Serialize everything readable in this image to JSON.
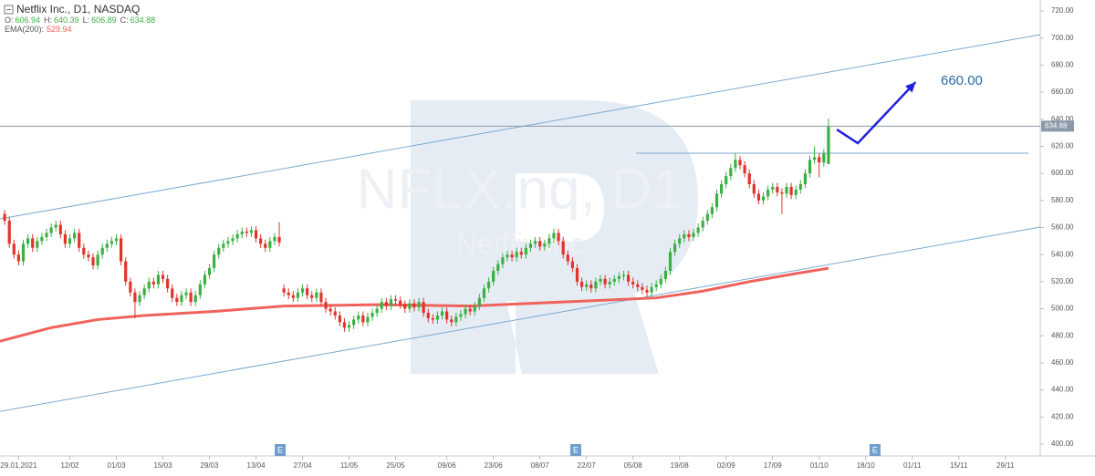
{
  "chart_data": {
    "type": "candlestick",
    "title": "Netflix Inc.,  D1,  NASDAQ",
    "ohlc_labels": [
      "O:",
      "H:",
      "L:",
      "C:"
    ],
    "up_color": "#3cb043",
    "down_color": "#e0342c",
    "ylim": [
      400,
      720
    ],
    "yticks": [
      {
        "value": 400,
        "label": "400.00"
      },
      {
        "value": 420,
        "label": "420.00"
      },
      {
        "value": 440,
        "label": "440.00"
      },
      {
        "value": 460,
        "label": "460.00"
      },
      {
        "value": 480,
        "label": "480.00"
      },
      {
        "value": 500,
        "label": "500.00"
      },
      {
        "value": 520,
        "label": "520.00"
      },
      {
        "value": 540,
        "label": "540.00"
      },
      {
        "value": 560,
        "label": "560.00"
      },
      {
        "value": 580,
        "label": "580.00"
      },
      {
        "value": 600,
        "label": "600.00"
      },
      {
        "value": 620,
        "label": "620.00"
      },
      {
        "value": 640,
        "label": "640.00"
      },
      {
        "value": 660,
        "label": "660.00"
      },
      {
        "value": 680,
        "label": "680.00"
      },
      {
        "value": 700,
        "label": "700.00"
      },
      {
        "value": 720,
        "label": "720.00"
      }
    ],
    "xlim": [
      -1,
      222.5
    ],
    "xticks": [
      {
        "value": 3,
        "label": "29.01.2021"
      },
      {
        "value": 14,
        "label": "12/02"
      },
      {
        "value": 24,
        "label": "01/03"
      },
      {
        "value": 34,
        "label": "15/03"
      },
      {
        "value": 44,
        "label": "29/03"
      },
      {
        "value": 54,
        "label": "13/04"
      },
      {
        "value": 64,
        "label": "27/04"
      },
      {
        "value": 74,
        "label": "11/05"
      },
      {
        "value": 84,
        "label": "25/05"
      },
      {
        "value": 95,
        "label": "09/06"
      },
      {
        "value": 105,
        "label": "23/06"
      },
      {
        "value": 115,
        "label": "08/07"
      },
      {
        "value": 125,
        "label": "22/07"
      },
      {
        "value": 135,
        "label": "05/08"
      },
      {
        "value": 145,
        "label": "19/08"
      },
      {
        "value": 155,
        "label": "02/09"
      },
      {
        "value": 165,
        "label": "17/09"
      },
      {
        "value": 175,
        "label": "01/10"
      },
      {
        "value": 185,
        "label": "18/10"
      },
      {
        "value": 195,
        "label": "01/11"
      },
      {
        "value": 205,
        "label": "15/11"
      },
      {
        "value": 215,
        "label": "29/11"
      }
    ],
    "open": [
      570,
      565,
      548,
      540,
      535,
      548,
      552,
      545,
      550,
      553,
      556,
      560,
      562,
      555,
      548,
      552,
      556,
      545,
      540,
      538,
      532,
      540,
      545,
      548,
      550,
      552,
      535,
      520,
      512,
      505,
      510,
      515,
      520,
      518,
      525,
      522,
      515,
      508,
      505,
      510,
      512,
      505,
      510,
      518,
      525,
      530,
      540,
      545,
      548,
      550,
      552,
      555,
      557,
      556,
      558,
      552,
      548,
      545,
      550,
      553,
      515,
      512,
      510,
      508,
      512,
      515,
      510,
      508,
      512,
      505,
      500,
      498,
      495,
      490,
      486,
      488,
      492,
      495,
      490,
      494,
      497,
      500,
      505,
      502,
      507,
      506,
      503,
      500,
      504,
      501,
      505,
      497,
      493,
      492,
      495,
      498,
      492,
      490,
      494,
      496,
      500,
      498,
      502,
      508,
      515,
      520,
      528,
      533,
      538,
      540,
      538,
      542,
      540,
      545,
      548,
      550,
      546,
      548,
      552,
      556,
      550,
      540,
      535,
      530,
      520,
      516,
      518,
      515,
      520,
      522,
      518,
      520,
      522,
      524,
      525,
      520,
      518,
      516,
      514,
      512,
      516,
      518,
      522,
      528,
      542,
      548,
      552,
      555,
      553,
      556,
      560,
      565,
      570,
      575,
      585,
      592,
      598,
      604,
      610,
      606,
      600,
      592,
      585,
      580,
      583,
      588,
      590,
      586,
      585,
      590,
      584,
      588,
      592,
      600,
      610,
      612,
      608,
      606.94
    ],
    "high": [
      573,
      568,
      551,
      543,
      551,
      555,
      555,
      553,
      556,
      559,
      563,
      565,
      565,
      558,
      555,
      559,
      559,
      548,
      543,
      541,
      543,
      548,
      551,
      553,
      555,
      555,
      538,
      523,
      515,
      513,
      518,
      523,
      523,
      528,
      528,
      525,
      518,
      511,
      513,
      515,
      515,
      513,
      521,
      528,
      533,
      543,
      548,
      551,
      553,
      555,
      558,
      560,
      560,
      561,
      561,
      555,
      551,
      553,
      556,
      564,
      518,
      515,
      513,
      515,
      518,
      518,
      513,
      515,
      515,
      508,
      503,
      501,
      498,
      493,
      491,
      495,
      498,
      498,
      497,
      500,
      503,
      508,
      508,
      510,
      510,
      509,
      506,
      507,
      507,
      508,
      508,
      500,
      496,
      498,
      501,
      501,
      495,
      497,
      499,
      503,
      503,
      505,
      511,
      518,
      523,
      531,
      536,
      541,
      543,
      543,
      545,
      545,
      548,
      551,
      553,
      553,
      551,
      555,
      559,
      559,
      553,
      543,
      538,
      533,
      523,
      521,
      521,
      523,
      525,
      525,
      523,
      525,
      527,
      528,
      528,
      523,
      521,
      519,
      517,
      519,
      521,
      525,
      531,
      545,
      551,
      555,
      558,
      558,
      559,
      563,
      568,
      573,
      578,
      588,
      595,
      601,
      607,
      615,
      613,
      609,
      603,
      595,
      588,
      586,
      591,
      593,
      593,
      589,
      593,
      593,
      591,
      595,
      603,
      613,
      620,
      615,
      618,
      640.39
    ],
    "low": [
      562,
      545,
      537,
      532,
      532,
      545,
      542,
      542,
      547,
      550,
      553,
      557,
      552,
      545,
      545,
      549,
      542,
      537,
      535,
      529,
      529,
      537,
      542,
      545,
      547,
      532,
      517,
      509,
      493,
      502,
      507,
      512,
      515,
      515,
      519,
      512,
      505,
      502,
      502,
      507,
      502,
      502,
      507,
      515,
      522,
      527,
      537,
      542,
      545,
      547,
      549,
      552,
      553,
      553,
      549,
      545,
      542,
      542,
      547,
      546,
      509,
      507,
      505,
      505,
      509,
      507,
      505,
      505,
      502,
      497,
      495,
      492,
      487,
      483,
      483,
      485,
      489,
      487,
      487,
      491,
      494,
      497,
      499,
      499,
      503,
      500,
      497,
      497,
      498,
      498,
      494,
      490,
      489,
      489,
      492,
      489,
      487,
      487,
      491,
      493,
      495,
      495,
      499,
      505,
      512,
      517,
      525,
      530,
      535,
      535,
      535,
      537,
      537,
      542,
      545,
      543,
      543,
      545,
      549,
      547,
      537,
      532,
      527,
      517,
      513,
      513,
      512,
      512,
      517,
      515,
      515,
      517,
      519,
      521,
      517,
      515,
      513,
      511,
      509,
      509,
      513,
      515,
      519,
      525,
      539,
      545,
      549,
      550,
      550,
      553,
      557,
      562,
      567,
      572,
      582,
      589,
      595,
      601,
      603,
      597,
      589,
      582,
      577,
      577,
      580,
      585,
      583,
      570,
      582,
      581,
      581,
      585,
      589,
      597,
      607,
      597,
      605,
      606.89
    ],
    "close": [
      565,
      548,
      540,
      535,
      548,
      552,
      545,
      550,
      553,
      556,
      560,
      562,
      555,
      548,
      552,
      556,
      545,
      540,
      538,
      532,
      540,
      545,
      548,
      550,
      552,
      535,
      520,
      512,
      505,
      510,
      515,
      520,
      518,
      525,
      522,
      515,
      508,
      505,
      510,
      512,
      505,
      510,
      518,
      525,
      530,
      540,
      545,
      548,
      550,
      552,
      555,
      557,
      556,
      558,
      552,
      548,
      545,
      550,
      553,
      549,
      512,
      510,
      508,
      512,
      515,
      510,
      508,
      512,
      505,
      500,
      498,
      495,
      490,
      486,
      488,
      492,
      495,
      490,
      494,
      497,
      500,
      505,
      502,
      507,
      506,
      503,
      500,
      504,
      501,
      505,
      497,
      493,
      492,
      495,
      498,
      492,
      490,
      494,
      496,
      500,
      498,
      502,
      508,
      515,
      520,
      528,
      533,
      538,
      540,
      538,
      542,
      540,
      545,
      548,
      550,
      546,
      548,
      552,
      556,
      550,
      540,
      535,
      530,
      520,
      516,
      518,
      515,
      520,
      522,
      518,
      520,
      522,
      524,
      525,
      520,
      518,
      516,
      514,
      512,
      516,
      518,
      522,
      528,
      542,
      548,
      552,
      555,
      553,
      556,
      560,
      565,
      570,
      575,
      585,
      592,
      598,
      604,
      610,
      606,
      600,
      592,
      585,
      580,
      583,
      588,
      590,
      586,
      585,
      590,
      584,
      588,
      592,
      600,
      610,
      612,
      608,
      615,
      634.88
    ],
    "ema": {
      "name": "EMA(200):",
      "color": "#f0625c",
      "x": [
        -1,
        10,
        20,
        30,
        45,
        60,
        80,
        100,
        120,
        140,
        150,
        160,
        170,
        177
      ],
      "values": [
        476,
        486,
        492,
        495,
        498,
        502,
        503,
        502,
        505,
        508,
        513,
        520,
        526,
        529.94
      ]
    },
    "price_line_color": "#8a9aa8",
    "trendlines": [
      {
        "color": "#7aaad0",
        "x": [
          -1,
          222.5
        ],
        "values": [
          566.4,
          702.5
        ]
      },
      {
        "color": "#7aaad0",
        "x": [
          -1,
          222.5
        ],
        "values": [
          424.2,
          560.3
        ]
      },
      {
        "color": "#7aaad0",
        "x": [
          135.7,
          220
        ],
        "values": [
          614.9,
          614.9
        ]
      }
    ],
    "forecast": {
      "color": "#1f1fe0",
      "x": [
        178.8,
        183.3,
        195.7
      ],
      "values": [
        632.4,
        622.3,
        667.4
      ],
      "label": "660.00"
    },
    "events": {
      "label": "E",
      "x": [
        59.2,
        122.7,
        187
      ]
    },
    "watermark": [
      "NFLX.nq, D1",
      "Netflix Inc"
    ]
  }
}
